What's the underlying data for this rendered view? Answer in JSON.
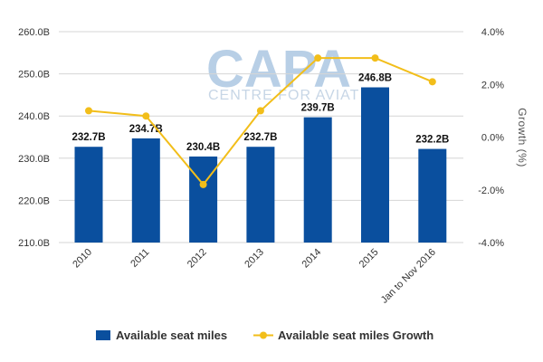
{
  "watermark": {
    "logo_text": "CAPA",
    "sub_text": "CENTRE FOR AVIATION"
  },
  "chart_data": {
    "type": "bar",
    "categories": [
      "2010",
      "2011",
      "2012",
      "2013",
      "2014",
      "2015",
      "Jan to Nov 2016"
    ],
    "series": [
      {
        "name": "Available seat miles",
        "type": "bar",
        "axis": "left",
        "color": "#0a4f9e",
        "values": [
          232.7,
          234.7,
          230.4,
          232.7,
          239.7,
          246.8,
          232.2
        ],
        "labels": [
          "232.7B",
          "234.7B",
          "230.4B",
          "232.7B",
          "239.7B",
          "246.8B",
          "232.2B"
        ]
      },
      {
        "name": "Available seat miles Growth",
        "type": "line",
        "axis": "right",
        "color": "#f2be1a",
        "values": [
          1.0,
          0.8,
          -1.8,
          1.0,
          3.0,
          3.0,
          2.1
        ]
      }
    ],
    "y_left": {
      "ylim": [
        210,
        260
      ],
      "ticks": [
        210,
        220,
        230,
        240,
        250,
        260
      ],
      "tick_labels": [
        "210.0B",
        "220.0B",
        "230.0B",
        "240.0B",
        "250.0B",
        "260.0B"
      ]
    },
    "y_right": {
      "label": "Growth (%)",
      "ylim": [
        -4,
        4
      ],
      "ticks": [
        -4,
        -2,
        0,
        2,
        4
      ],
      "tick_labels": [
        "-4.0%",
        "-2.0%",
        "0.0%",
        "2.0%",
        "4.0%"
      ]
    },
    "grid": "horizontal",
    "legend": "bottom-center"
  }
}
